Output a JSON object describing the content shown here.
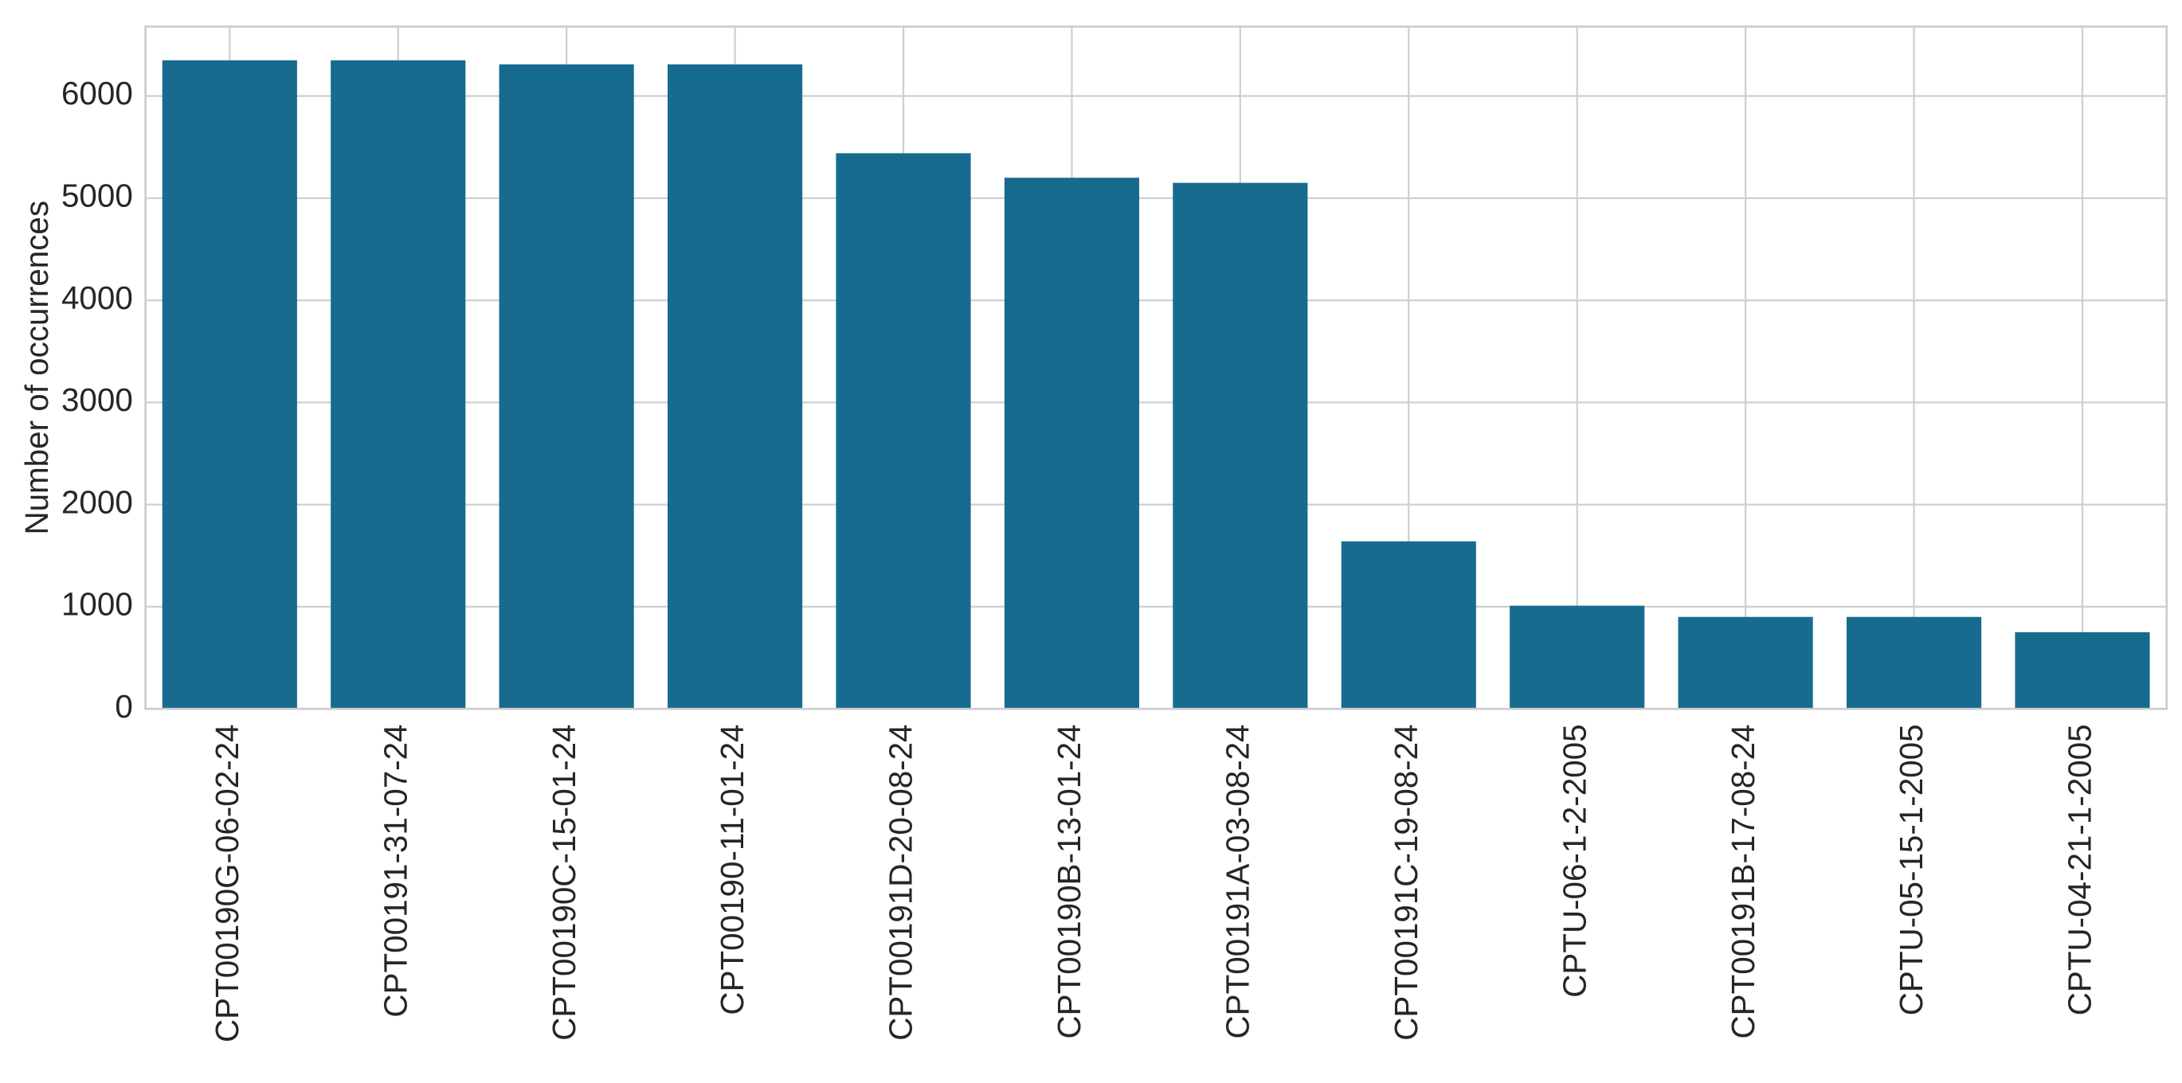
{
  "chart_data": {
    "type": "bar",
    "y_label": "Number of occurrences",
    "categories": [
      "CPT00190G-06-02-24",
      "CPT00191-31-07-24",
      "CPT00190C-15-01-24",
      "CPT00190-11-01-24",
      "CPT00191D-20-08-24",
      "CPT00190B-13-01-24",
      "CPT00191A-03-08-24",
      "CPT00191C-19-08-24",
      "CPTU-06-1-2-2005",
      "CPT00191B-17-08-24",
      "CPTU-05-15-1-2005",
      "CPTU-04-21-1-2005"
    ],
    "values": [
      6350,
      6350,
      6310,
      6310,
      5440,
      5200,
      5150,
      1640,
      1010,
      900,
      900,
      750
    ],
    "color": "#176b8e",
    "ylim": [
      0,
      6680
    ],
    "yticks": [
      0,
      1000,
      2000,
      3000,
      4000,
      5000,
      6000
    ],
    "grid": true
  }
}
